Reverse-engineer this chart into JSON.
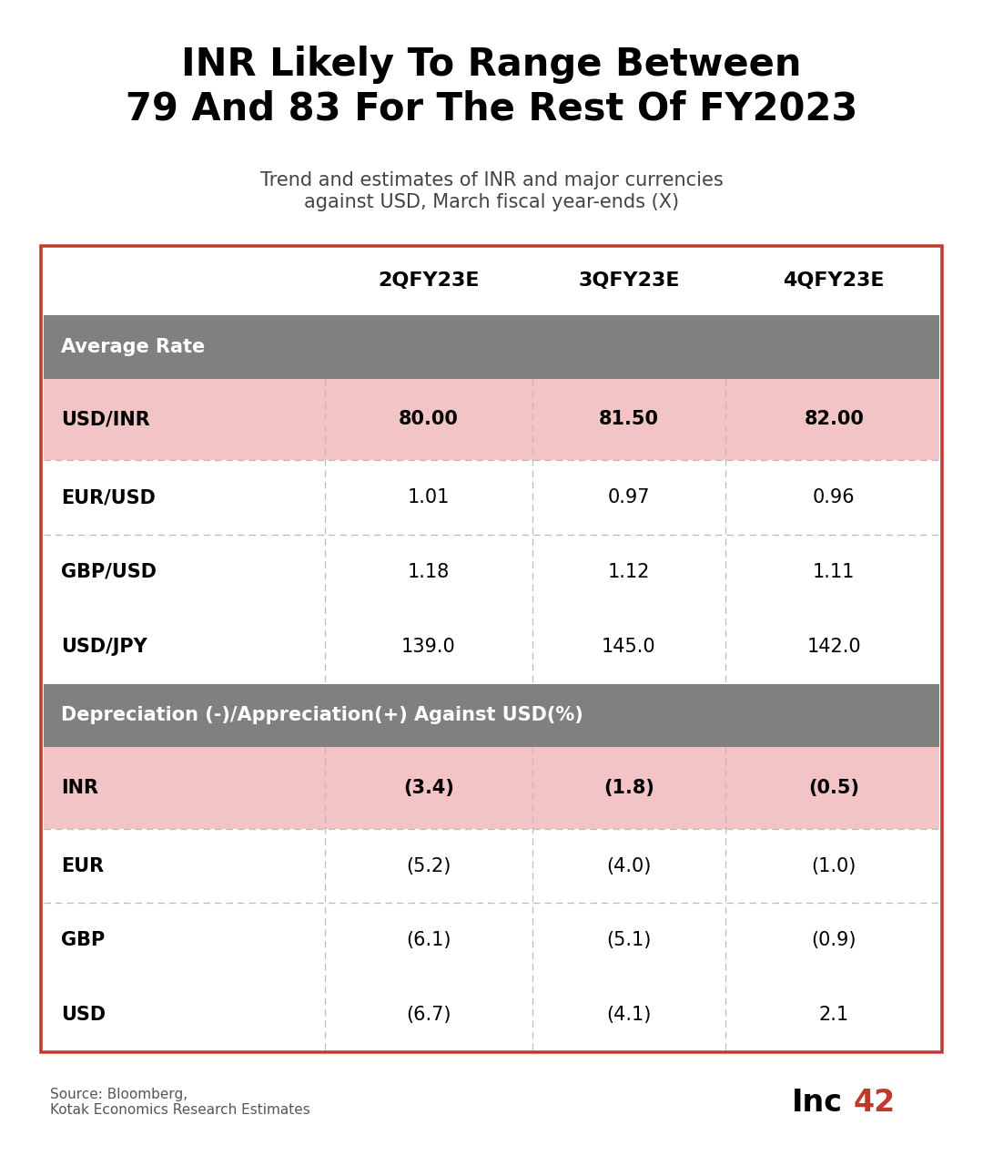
{
  "title": "INR Likely To Range Between\n79 And 83 For The Rest Of FY2023",
  "subtitle": "Trend and estimates of INR and major currencies\nagainst USD, March fiscal year-ends (X)",
  "columns": [
    "",
    "2QFY23E",
    "3QFY23E",
    "4QFY23E"
  ],
  "section1_header": "Average Rate",
  "section2_header": "Depreciation (-)/Appreciation(+) Against USD(%)",
  "rows_section1": [
    {
      "label": "USD/INR",
      "values": [
        "80.00",
        "81.50",
        "82.00"
      ],
      "highlight": true
    },
    {
      "label": "EUR/USD",
      "values": [
        "1.01",
        "0.97",
        "0.96"
      ],
      "highlight": false
    },
    {
      "label": "GBP/USD",
      "values": [
        "1.18",
        "1.12",
        "1.11"
      ],
      "highlight": false
    },
    {
      "label": "USD/JPY",
      "values": [
        "139.0",
        "145.0",
        "142.0"
      ],
      "highlight": false
    }
  ],
  "rows_section2": [
    {
      "label": "INR",
      "values": [
        "(3.4)",
        "(1.8)",
        "(0.5)"
      ],
      "highlight": true
    },
    {
      "label": "EUR",
      "values": [
        "(5.2)",
        "(4.0)",
        "(1.0)"
      ],
      "highlight": false
    },
    {
      "label": "GBP",
      "values": [
        "(6.1)",
        "(5.1)",
        "(0.9)"
      ],
      "highlight": false
    },
    {
      "label": "USD",
      "values": [
        "(6.7)",
        "(4.1)",
        "2.1"
      ],
      "highlight": false
    }
  ],
  "source_text": "Source: Bloomberg,\nKotak Economics Research Estimates",
  "colors": {
    "background": "#ffffff",
    "title_color": "#000000",
    "subtitle_color": "#444444",
    "table_border": "#c0392b",
    "section_header_bg": "#808080",
    "section_header_text": "#ffffff",
    "highlight_row_bg": "#f2c4c6",
    "normal_row_bg": "#ffffff",
    "divider_line": "#bbbbbb",
    "col_divider": "#bbbbbb",
    "header_row_bg": "#ffffff",
    "col_header_text": "#000000",
    "label_text_normal": "#000000",
    "value_text": "#000000",
    "logo_inc": "#000000",
    "logo_42": "#c0392b"
  },
  "title_fontsize": 30,
  "subtitle_fontsize": 15,
  "col_header_fontsize": 16,
  "section_header_fontsize": 15,
  "data_fontsize": 15,
  "source_fontsize": 11,
  "logo_fontsize": 24
}
